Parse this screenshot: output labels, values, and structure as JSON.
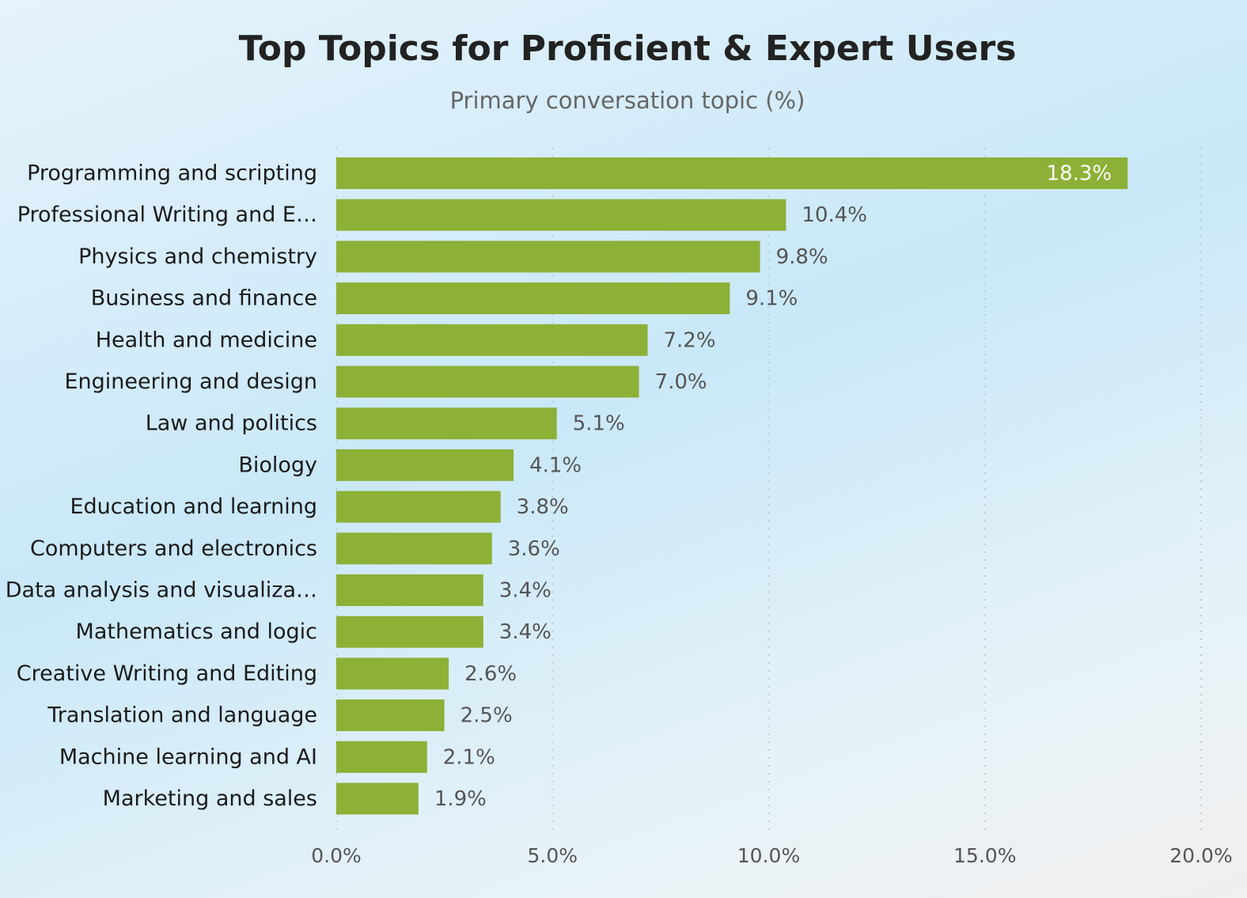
{
  "chart_data": {
    "type": "bar",
    "orientation": "horizontal",
    "title": "Top Topics for Proficient & Expert Users",
    "subtitle": "Primary conversation topic (%)",
    "categories": [
      "Programming and scripting",
      "Professional Writing and E…",
      "Physics and chemistry",
      "Business and finance",
      "Health and medicine",
      "Engineering and design",
      "Law and politics",
      "Biology",
      "Education and learning",
      "Computers and electronics",
      "Data analysis and visualiza…",
      "Mathematics and logic",
      "Creative Writing and Editing",
      "Translation and language",
      "Machine learning and AI",
      "Marketing and sales"
    ],
    "values": [
      18.3,
      10.4,
      9.8,
      9.1,
      7.2,
      7.0,
      5.1,
      4.1,
      3.8,
      3.6,
      3.4,
      3.4,
      2.6,
      2.5,
      2.1,
      1.9
    ],
    "value_labels": [
      "18.3%",
      "10.4%",
      "9.8%",
      "9.1%",
      "7.2%",
      "7.0%",
      "5.1%",
      "4.1%",
      "3.8%",
      "3.6%",
      "3.4%",
      "3.4%",
      "2.6%",
      "2.5%",
      "2.1%",
      "1.9%"
    ],
    "color": "#8db036",
    "xlim": [
      0,
      20
    ],
    "xticks": [
      {
        "value": 0,
        "label": "0.0%"
      },
      {
        "value": 5,
        "label": "5.0%"
      },
      {
        "value": 10,
        "label": "10.0%"
      },
      {
        "value": 15,
        "label": "15.0%"
      },
      {
        "value": 20,
        "label": "20.0%"
      }
    ],
    "grid": true
  }
}
